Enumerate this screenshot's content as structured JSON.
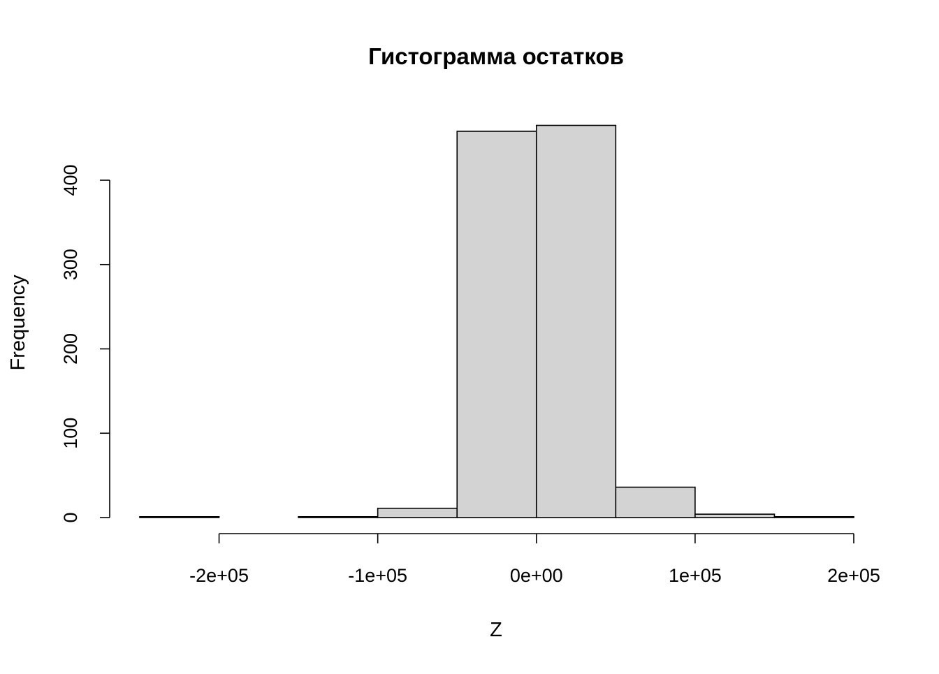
{
  "chart_data": {
    "type": "bar",
    "title": "Гистограмма остатков",
    "xlabel": "Z",
    "ylabel": "Frequency",
    "bin_width": 50000,
    "bins": [
      {
        "from": -250000,
        "to": -200000,
        "count": 1
      },
      {
        "from": -200000,
        "to": -150000,
        "count": 0
      },
      {
        "from": -150000,
        "to": -100000,
        "count": 1
      },
      {
        "from": -100000,
        "to": -50000,
        "count": 11
      },
      {
        "from": -50000,
        "to": 0,
        "count": 458
      },
      {
        "from": 0,
        "to": 50000,
        "count": 465
      },
      {
        "from": 50000,
        "to": 100000,
        "count": 36
      },
      {
        "from": 100000,
        "to": 150000,
        "count": 4
      },
      {
        "from": 150000,
        "to": 200000,
        "count": 1
      }
    ],
    "xlim": [
      -250000,
      200000
    ],
    "ylim": [
      0,
      465
    ],
    "x_ticks": [
      {
        "value": -200000,
        "label": "-2e+05"
      },
      {
        "value": -100000,
        "label": "-1e+05"
      },
      {
        "value": 0,
        "label": "0e+00"
      },
      {
        "value": 100000,
        "label": "1e+05"
      },
      {
        "value": 200000,
        "label": "2e+05"
      }
    ],
    "y_ticks": [
      {
        "value": 0,
        "label": "0"
      },
      {
        "value": 100,
        "label": "100"
      },
      {
        "value": 200,
        "label": "200"
      },
      {
        "value": 300,
        "label": "300"
      },
      {
        "value": 400,
        "label": "400"
      }
    ],
    "grid": false,
    "legend": "none",
    "colors": {
      "bar_fill": "#d3d3d3",
      "bar_stroke": "#000000",
      "axis": "#000000"
    }
  }
}
